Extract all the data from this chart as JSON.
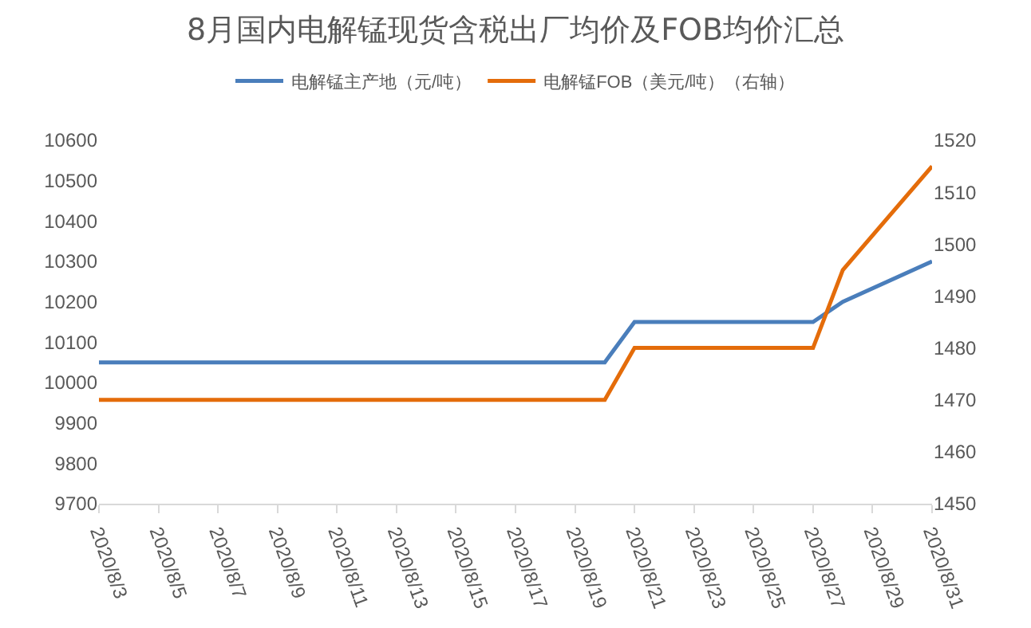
{
  "chart_data": {
    "type": "line",
    "title": "8月国内电解锰现货含税出厂均价及FOB均价汇总",
    "x": [
      "2020-08-03",
      "2020-08-04",
      "2020-08-05",
      "2020-08-06",
      "2020-08-07",
      "2020-08-10",
      "2020-08-11",
      "2020-08-12",
      "2020-08-13",
      "2020-08-14",
      "2020-08-17",
      "2020-08-18",
      "2020-08-19",
      "2020-08-20",
      "2020-08-21",
      "2020-08-24",
      "2020-08-25",
      "2020-08-26",
      "2020-08-27",
      "2020-08-28",
      "2020-08-31"
    ],
    "series": [
      {
        "name": "电解锰主产地（元/吨）",
        "color": "#4a7ebb",
        "values": [
          10050,
          10050,
          10050,
          10050,
          10050,
          10050,
          10050,
          10050,
          10050,
          10050,
          10050,
          10050,
          10050,
          10050,
          10150,
          10150,
          10150,
          10150,
          10150,
          10200,
          10300
        ]
      },
      {
        "name": "电解锰FOB（美元/吨）（右轴）",
        "color": "#e46c0a",
        "axis": "y2",
        "values": [
          1470,
          1470,
          1470,
          1470,
          1470,
          1470,
          1470,
          1470,
          1470,
          1470,
          1470,
          1470,
          1470,
          1470,
          1480,
          1480,
          1480,
          1480,
          1480,
          1495,
          1515
        ]
      }
    ],
    "xlim": [
      "2020-08-03",
      "2020-08-31"
    ],
    "xticks": [
      {
        "value": "2020-08-03",
        "label": "2020/8/3"
      },
      {
        "value": "2020-08-05",
        "label": "2020/8/5"
      },
      {
        "value": "2020-08-07",
        "label": "2020/8/7"
      },
      {
        "value": "2020-08-09",
        "label": "2020/8/9"
      },
      {
        "value": "2020-08-11",
        "label": "2020/8/11"
      },
      {
        "value": "2020-08-13",
        "label": "2020/8/13"
      },
      {
        "value": "2020-08-15",
        "label": "2020/8/15"
      },
      {
        "value": "2020-08-17",
        "label": "2020/8/17"
      },
      {
        "value": "2020-08-19",
        "label": "2020/8/19"
      },
      {
        "value": "2020-08-21",
        "label": "2020/8/21"
      },
      {
        "value": "2020-08-23",
        "label": "2020/8/23"
      },
      {
        "value": "2020-08-25",
        "label": "2020/8/25"
      },
      {
        "value": "2020-08-27",
        "label": "2020/8/27"
      },
      {
        "value": "2020-08-29",
        "label": "2020/8/29"
      },
      {
        "value": "2020-08-31",
        "label": "2020/8/31"
      }
    ],
    "ylim": [
      9700,
      10600
    ],
    "yticks": [
      9700,
      9800,
      9900,
      10000,
      10100,
      10200,
      10300,
      10400,
      10500,
      10600
    ],
    "y2lim": [
      1450,
      1520
    ],
    "y2ticks": [
      1450,
      1460,
      1470,
      1480,
      1490,
      1500,
      1510,
      1520
    ],
    "legend": "top",
    "marker": "none",
    "line_style": "solid"
  }
}
